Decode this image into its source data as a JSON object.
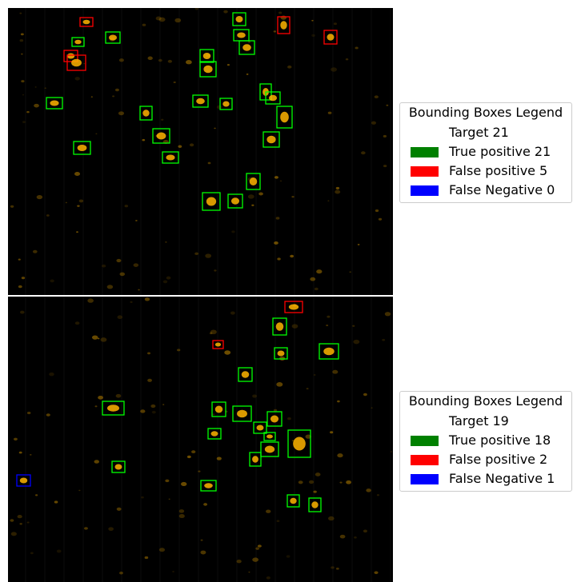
{
  "colors": {
    "true_positive": "#008000",
    "false_positive": "#ff0000",
    "false_negative": "#0000ff",
    "box_tp": "#00ff00",
    "box_fp": "#ff0000",
    "box_fn": "#0000ff",
    "cell_glow": "#ffb400"
  },
  "panels": [
    {
      "legend": {
        "title": "Bounding Boxes Legend",
        "target_label": "Target",
        "target_count": "21",
        "tp_label": "True positive",
        "tp_count": "21",
        "fp_label": "False positive",
        "fp_count": "5",
        "fn_label": "False Negative",
        "fn_count": "0"
      }
    },
    {
      "legend": {
        "title": "Bounding Boxes Legend",
        "target_label": "Target",
        "target_count": "19",
        "tp_label": "True positive",
        "tp_count": "18",
        "fp_label": "False positive",
        "fp_count": "2",
        "fn_label": "False Negative",
        "fn_count": "1"
      }
    }
  ]
}
